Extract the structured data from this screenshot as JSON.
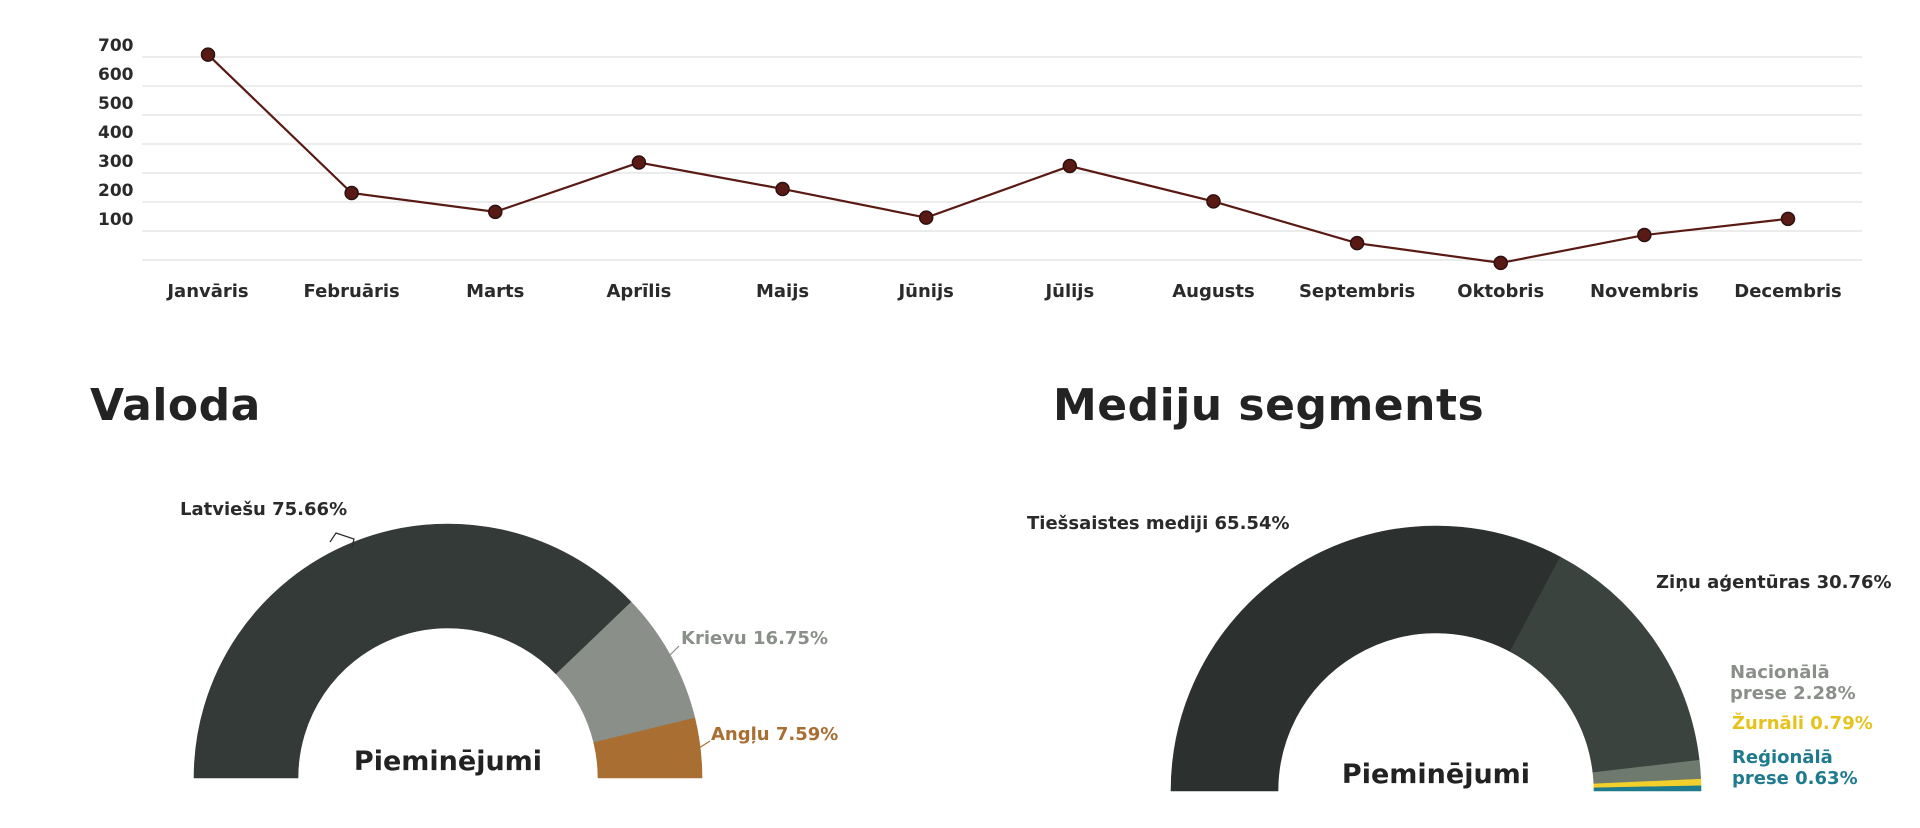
{
  "chart_data": [
    {
      "type": "line",
      "categories": [
        "Janvāris",
        "Februāris",
        "Marts",
        "Aprīlis",
        "Maijs",
        "Jūnijs",
        "Jūlijs",
        "Augusts",
        "Septembris",
        "Oktobris",
        "Novembris",
        "Decembris"
      ],
      "series": [
        {
          "values": [
            708,
            231,
            166,
            336,
            245,
            146,
            324,
            202,
            58,
            -10,
            86,
            142
          ]
        }
      ],
      "yticks": [
        100,
        200,
        300,
        400,
        500,
        600,
        700
      ],
      "ylim": [
        0,
        700
      ],
      "grid": true,
      "line_color": "#5a1a14",
      "marker_color": "#5a1a14"
    },
    {
      "type": "pie",
      "title": "Valoda",
      "center_label": "Pieminējumi",
      "slices": [
        {
          "label": "Latviešu 75.66%",
          "value": 75.66,
          "color": "#343a37",
          "label_color": "#2a2a2a"
        },
        {
          "label": "Krievu 16.75%",
          "value": 16.75,
          "color": "#8a8f89",
          "label_color": "#8a8f89"
        },
        {
          "label": "Angļu 7.59%",
          "value": 7.59,
          "color": "#a86e32",
          "label_color": "#a86e32"
        }
      ]
    },
    {
      "type": "pie",
      "title": "Mediju segments",
      "center_label": "Pieminējumi",
      "slices": [
        {
          "label": "Tiešsaistes mediji 65.54%",
          "value": 65.54,
          "color": "#2c302e",
          "label_color": "#2a2a2a"
        },
        {
          "label": "Ziņu aģentūras 30.76%",
          "value": 30.76,
          "color": "#3b433f",
          "label_color": "#2a2a2a"
        },
        {
          "label": [
            "Nacionālā",
            "prese 2.28%"
          ],
          "value": 2.28,
          "color": "#6e7a6e",
          "label_color": "#8a8f89"
        },
        {
          "label": "Žurnāli 0.79%",
          "value": 0.79,
          "color": "#f2cf2a",
          "label_color": "#e6c21c"
        },
        {
          "label": [
            "Reģionālā",
            "prese 0.63%"
          ],
          "value": 0.63,
          "color": "#1e7a8c",
          "label_color": "#1e7a8c"
        }
      ]
    }
  ]
}
